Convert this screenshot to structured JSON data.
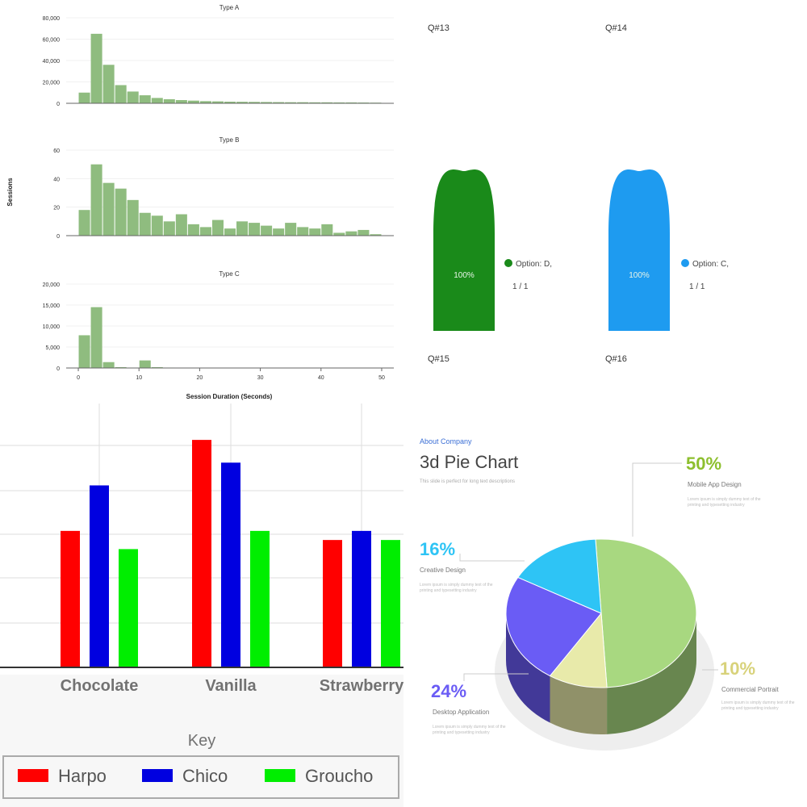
{
  "chart_data": [
    {
      "type": "bar",
      "subtype": "histogram-facets",
      "xlabel": "Session Duration (Seconds)",
      "ylabel": "Sessions",
      "xlim": [
        -2,
        52
      ],
      "xticks": [
        "0",
        "10",
        "20",
        "30",
        "40",
        "50"
      ],
      "bin_width": 2,
      "bar_color": "#8fbc7f",
      "facets": [
        {
          "title": "Type A",
          "ylim": [
            0,
            80000
          ],
          "yticks": [
            "0",
            "20,000",
            "40,000",
            "60,000",
            "80,000"
          ],
          "bin_starts": [
            0,
            2,
            4,
            6,
            8,
            10,
            12,
            14,
            16,
            18,
            20,
            22,
            24,
            26,
            28,
            30,
            32,
            34,
            36,
            38,
            40,
            42,
            44,
            46,
            48
          ],
          "values": [
            10000,
            65000,
            36000,
            17000,
            11000,
            7500,
            5000,
            3800,
            3000,
            2500,
            2000,
            1800,
            1500,
            1400,
            1300,
            1200,
            1100,
            1000,
            1000,
            900,
            900,
            800,
            800,
            700,
            600
          ]
        },
        {
          "title": "Type B",
          "ylim": [
            0,
            60
          ],
          "yticks": [
            "0",
            "20",
            "40",
            "60"
          ],
          "bin_starts": [
            0,
            2,
            4,
            6,
            8,
            10,
            12,
            14,
            16,
            18,
            20,
            22,
            24,
            26,
            28,
            30,
            32,
            34,
            36,
            38,
            40,
            42,
            44,
            46,
            48
          ],
          "values": [
            18,
            50,
            37,
            33,
            25,
            16,
            14,
            10,
            15,
            8,
            6,
            11,
            5,
            10,
            9,
            7,
            5,
            9,
            6,
            5,
            8,
            2,
            3,
            4,
            1
          ]
        },
        {
          "title": "Type C",
          "ylim": [
            0,
            20000
          ],
          "yticks": [
            "0",
            "5,000",
            "10,000",
            "15,000",
            "20,000"
          ],
          "bin_starts": [
            0,
            2,
            4,
            6,
            8,
            10,
            12,
            14,
            16,
            18,
            20,
            22,
            24,
            26,
            28,
            30,
            32,
            34,
            36,
            38,
            40,
            42,
            44,
            46,
            48
          ],
          "values": [
            7800,
            14500,
            1400,
            200,
            100,
            1800,
            200,
            100,
            50,
            50,
            50,
            50,
            50,
            50,
            50,
            50,
            50,
            50,
            50,
            50,
            50,
            50,
            50,
            50,
            50
          ]
        }
      ]
    },
    {
      "type": "pie",
      "charts": [
        {
          "title": "Q#15",
          "center_label": "100%",
          "legend": "Option: D,",
          "count": "1 / 1",
          "color": "#1a8a1a"
        },
        {
          "title": "Q#16",
          "center_label": "100%",
          "legend": "Option: C,",
          "count": "1 / 1",
          "color": "#1e9bf0"
        }
      ],
      "other_titles": [
        "Q#13",
        "Q#14"
      ]
    },
    {
      "type": "bar",
      "categories": [
        "Chocolate",
        "Vanilla",
        "Strawberry"
      ],
      "series": [
        {
          "name": "Harpo",
          "color": "#ff0000",
          "values": [
            30,
            50,
            28
          ]
        },
        {
          "name": "Chico",
          "color": "#0000e0",
          "values": [
            40,
            45,
            30
          ]
        },
        {
          "name": "Groucho",
          "color": "#00ee00",
          "values": [
            26,
            30,
            28
          ]
        }
      ],
      "ylim": [
        0,
        58
      ],
      "legend_title": "Key",
      "legend_position": "bottom"
    },
    {
      "type": "pie",
      "style": "3d",
      "kicker": "About Company",
      "title": "3d Pie Chart",
      "subtitle": "This slide is perfect for long text descriptions",
      "slices": [
        {
          "label": "Mobile App Design",
          "value": 50,
          "display": "50%",
          "color": "#a8d880"
        },
        {
          "label": "Commercial Portrait",
          "value": 10,
          "display": "10%",
          "color": "#e8eaaa"
        },
        {
          "label": "Desktop Application",
          "value": 24,
          "display": "24%",
          "color": "#6a5cf5"
        },
        {
          "label": "Creative Design",
          "value": 16,
          "display": "16%",
          "color": "#2ec4f5"
        }
      ],
      "lorem": "Lorem ipsum is simply dummy text of the printing and typesetting industry"
    }
  ]
}
